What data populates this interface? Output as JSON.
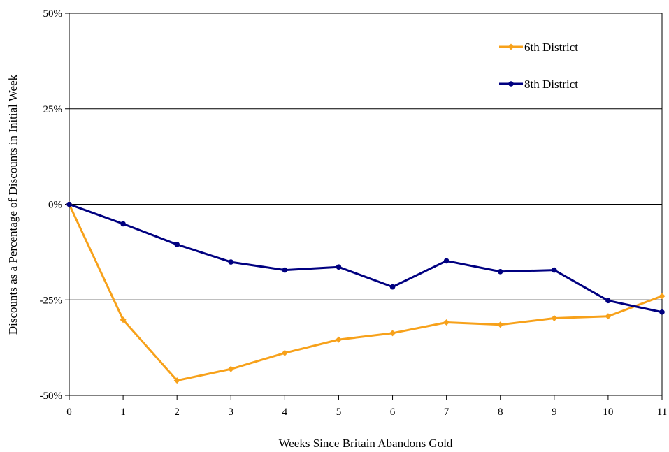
{
  "chart_data": {
    "type": "line",
    "title": "",
    "xlabel": "Weeks Since Britain Abandons Gold",
    "ylabel": "Discounts as a Percentage of Discounts in Initial Week",
    "x": [
      0,
      1,
      2,
      3,
      4,
      5,
      6,
      7,
      8,
      9,
      10,
      11
    ],
    "xlim": [
      0,
      11
    ],
    "ylim": [
      -50,
      50
    ],
    "y_ticks": [
      {
        "value": 50,
        "label": "50%"
      },
      {
        "value": 25,
        "label": "25%"
      },
      {
        "value": 0,
        "label": "0%"
      },
      {
        "value": -25,
        "label": "-25%"
      },
      {
        "value": -50,
        "label": "-50%"
      }
    ],
    "x_tick_labels": [
      "0",
      "1",
      "2",
      "3",
      "4",
      "5",
      "6",
      "7",
      "8",
      "9",
      "10",
      "11"
    ],
    "grid": "horizontal",
    "legend_position": "top-right",
    "series": [
      {
        "name": "6th District",
        "color": "#F7A11A",
        "marker": "diamond",
        "values": [
          0,
          -30.2,
          -46.1,
          -43.1,
          -38.9,
          -35.4,
          -33.7,
          -30.9,
          -31.5,
          -29.8,
          -29.3,
          -24.0
        ]
      },
      {
        "name": "8th District",
        "color": "#000080",
        "marker": "circle",
        "values": [
          0,
          -5.1,
          -10.5,
          -15.1,
          -17.2,
          -16.4,
          -21.6,
          -14.8,
          -17.6,
          -17.2,
          -25.2,
          -28.2
        ]
      }
    ]
  }
}
